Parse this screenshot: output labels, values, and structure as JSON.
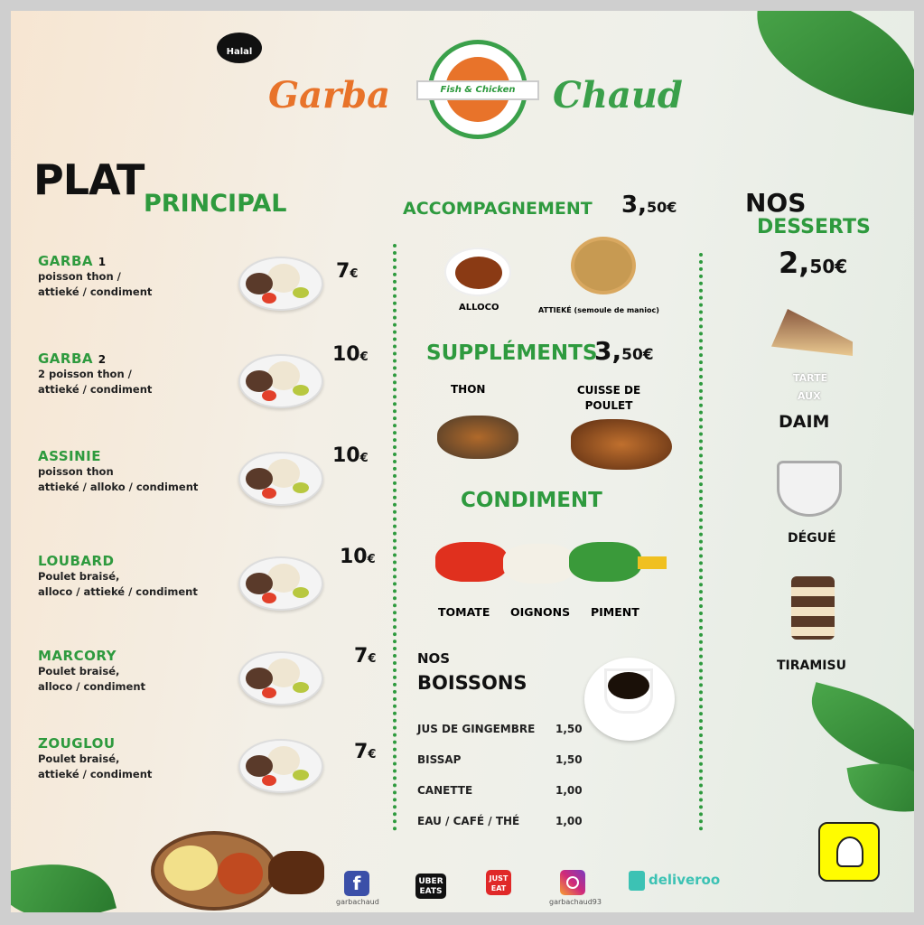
{
  "header": {
    "halal": "Halal",
    "brand_left": "Garba",
    "brand_right": "Chaud",
    "logo_text": "Fish & Chicken"
  },
  "plats": {
    "title_top": "PLAT",
    "title_bottom": "PRINCIPAL",
    "items": [
      {
        "name": "GARBA",
        "num": "1",
        "desc1": "poisson thon /",
        "desc2": "attieké / condiment",
        "price": "7",
        "currency": "€"
      },
      {
        "name": "GARBA",
        "num": "2",
        "desc1": "2 poisson thon /",
        "desc2": "attieké  / condiment",
        "price": "10",
        "currency": "€"
      },
      {
        "name": "ASSINIE",
        "num": "",
        "desc1": "poisson thon",
        "desc2": "attieké / alloko / condiment",
        "price": "10",
        "currency": "€"
      },
      {
        "name": "LOUBARD",
        "num": "",
        "desc1": "Poulet braisé,",
        "desc2": "alloco / attieké  / condiment",
        "price": "10",
        "currency": "€"
      },
      {
        "name": "MARCORY",
        "num": "",
        "desc1": "Poulet braisé,",
        "desc2": "alloco / condiment",
        "price": "7",
        "currency": "€"
      },
      {
        "name": "ZOUGLOU",
        "num": "",
        "desc1": "Poulet braisé,",
        "desc2": "attieké / condiment",
        "price": "7",
        "currency": "€"
      }
    ]
  },
  "accompagnement": {
    "title": "ACCOMPAGNEMENT",
    "price_big": "3,",
    "price_small": "50€",
    "items": [
      "ALLOCO",
      "ATTIEKÉ (semoule de manioc)"
    ]
  },
  "supplements": {
    "title": "SUPPLÉMENTS",
    "price_big": "3,",
    "price_small": "50€",
    "items": [
      "THON",
      "CUISSE DE POULET"
    ]
  },
  "condiment": {
    "title": "CONDIMENT",
    "items": [
      "TOMATE",
      "OIGNONS",
      "PIMENT"
    ]
  },
  "boissons": {
    "title_top": "NOS",
    "title_bottom": "BOISSONS",
    "items": [
      {
        "name": "JUS DE GINGEMBRE",
        "price": "1,50"
      },
      {
        "name": "BISSAP",
        "price": "1,50"
      },
      {
        "name": "CANETTE",
        "price": "1,00"
      },
      {
        "name": "EAU / CAFÉ / THÉ",
        "price": "1,00"
      }
    ]
  },
  "desserts": {
    "title_top": "NOS",
    "title_bottom": "DESSERTS",
    "price_big": "2,",
    "price_small": "50€",
    "items": [
      {
        "line1": "TARTE",
        "line2": "AUX",
        "line3": "DAIM"
      },
      {
        "line3": "DÉGUÉ"
      },
      {
        "line3": "TIRAMISU"
      }
    ]
  },
  "footer": {
    "facebook_handle": "garbachaud",
    "ubereats": "UBER EATS",
    "justeat": "JUST EAT",
    "instagram_handle": "garbachaud93",
    "deliveroo": "deliveroo"
  },
  "colors": {
    "green": "#2e9a3e",
    "orange": "#e8732a",
    "deliveroo": "#3cc2b4"
  }
}
